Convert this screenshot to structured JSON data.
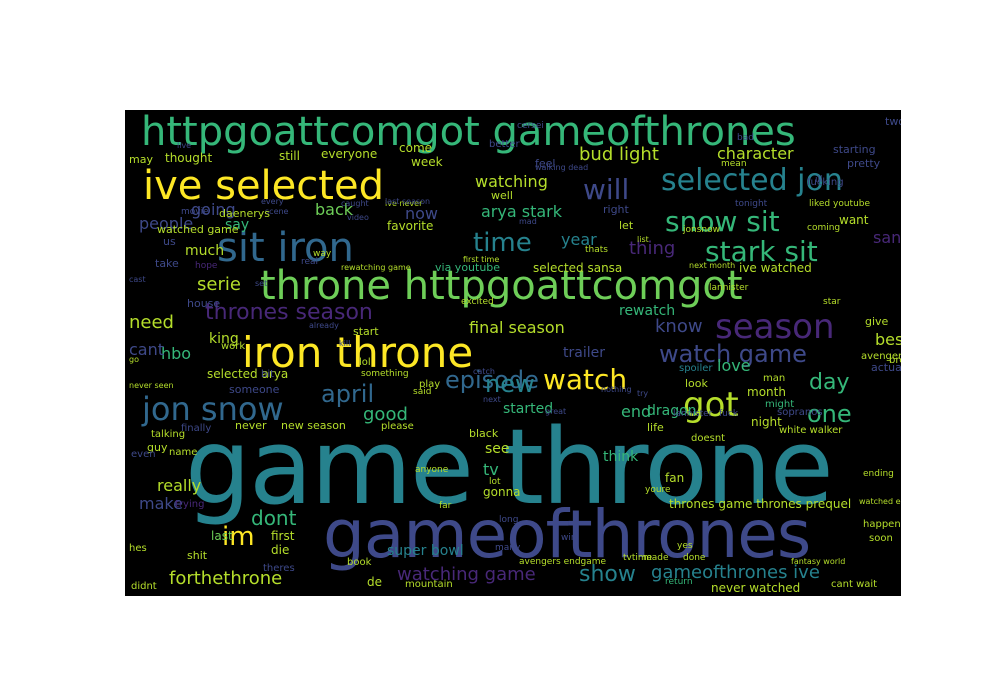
{
  "wordcloud": {
    "colors": {
      "purple_dark": "#440154",
      "purple": "#482878",
      "indigo": "#3e4989",
      "blue": "#31688e",
      "teal": "#26828e",
      "teal_green": "#1f9e89",
      "green": "#35b779",
      "light_green": "#6ece58",
      "lime": "#b5de2b",
      "yellow": "#fde725"
    },
    "words": [
      "game throne",
      "gameofthrones",
      "httpgoattcomgot gameofthrones",
      "throne httpgoattcomgot",
      "iron throne",
      "ive selected",
      "sit iron",
      "jon snow",
      "selected jon",
      "season",
      "snow sit",
      "stark sit",
      "got",
      "watch",
      "watch game",
      "time",
      "thrones season",
      "april",
      "episode",
      "new",
      "one",
      "day",
      "will",
      "im",
      "show",
      "dont",
      "watching game",
      "forthethrone",
      "gameofthrones ive",
      "bud light",
      "character",
      "watching",
      "arya stark",
      "sansa stark",
      "final season",
      "know",
      "thing",
      "serie",
      "people",
      "make",
      "really",
      "need",
      "back",
      "now",
      "going",
      "year",
      "selected sansa",
      "good",
      "love",
      "best",
      "king",
      "hbo",
      "cant",
      "much",
      "say",
      "selected arya",
      "trailer",
      "rewatch",
      "end",
      "see",
      "tv",
      "think",
      "dragon",
      "started",
      "fan",
      "gonna",
      "super bowl",
      "thrones game thrones prequel",
      "never watched",
      "mountain",
      "de",
      "die",
      "last",
      "first",
      "still",
      "everyone",
      "come",
      "week",
      "thought",
      "watched game",
      "favorite",
      "ive watched",
      "want",
      "month",
      "night",
      "look",
      "new season",
      "never",
      "black",
      "actually",
      "starting",
      "two",
      "pretty",
      "fucking",
      "someone",
      "house",
      "take",
      "may",
      "us",
      "via youtube",
      "start",
      "give",
      "avengers",
      "man",
      "spoiler",
      "might",
      "sopranos",
      "breaking bad",
      "white walker",
      "life",
      "doesnt",
      "please",
      "finally",
      "talking",
      "name",
      "guy",
      "even",
      "trying",
      "hes",
      "shit",
      "theres",
      "didnt",
      "book",
      "wait",
      "cant wait",
      "soon",
      "happen",
      "ending",
      "youre",
      "made",
      "tvtime",
      "done",
      "return",
      "yes",
      "fantasy world",
      "avengers endgame",
      "many",
      "win",
      "long",
      "lot",
      "far",
      "anyone",
      "mean",
      "bad",
      "feel",
      "better",
      "cersei",
      "walking dead",
      "well",
      "ive never",
      "caught",
      "last season",
      "video",
      "every",
      "scene",
      "live",
      "movie",
      "daenerys",
      "hope",
      "real",
      "way",
      "let",
      "right",
      "thats",
      "first time",
      "rewatching game",
      "next month",
      "lannister",
      "star",
      "excited",
      "already",
      "kill",
      "lol",
      "something",
      "play",
      "said",
      "catch",
      "nothing",
      "great",
      "next",
      "try",
      "bit",
      "work",
      "go",
      "never seen",
      "cast",
      "set",
      "list",
      "jonsnow",
      "tonight",
      "coming",
      "liked youtube",
      "mad",
      "watched episode",
      "ill",
      "fuck",
      "lannister",
      "ep",
      "stark"
    ]
  }
}
